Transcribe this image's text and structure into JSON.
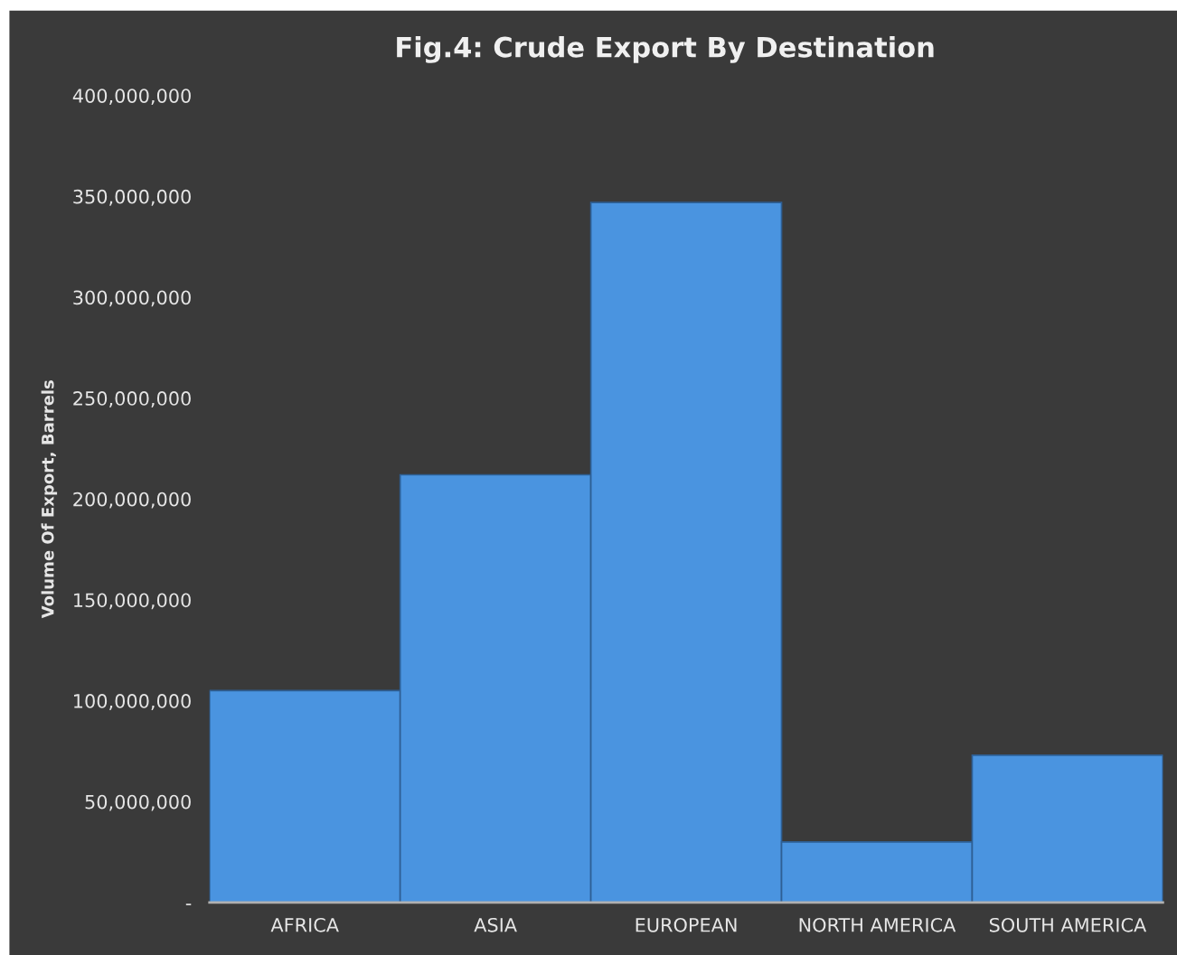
{
  "chart_data": {
    "type": "bar",
    "title": "Fig.4: Crude Export By Destination",
    "ylabel": "Volume Of Export, Barrels",
    "categories": [
      "AFRICA",
      "ASIA",
      "EUROPEAN",
      "NORTH AMERICA",
      "SOUTH AMERICA"
    ],
    "values": [
      105000000,
      212000000,
      347000000,
      30000000,
      73000000
    ],
    "color": "#4a94e0",
    "ylim": [
      0,
      400000000
    ],
    "yticks": [
      {
        "value": 0,
        "label": "-"
      },
      {
        "value": 50000000,
        "label": "50,000,000"
      },
      {
        "value": 100000000,
        "label": "100,000,000"
      },
      {
        "value": 150000000,
        "label": "150,000,000"
      },
      {
        "value": 200000000,
        "label": "200,000,000"
      },
      {
        "value": 250000000,
        "label": "250,000,000"
      },
      {
        "value": 300000000,
        "label": "300,000,000"
      },
      {
        "value": 350000000,
        "label": "350,000,000"
      },
      {
        "value": 400000000,
        "label": "400,000,000"
      }
    ],
    "grid": false,
    "legend": false
  }
}
